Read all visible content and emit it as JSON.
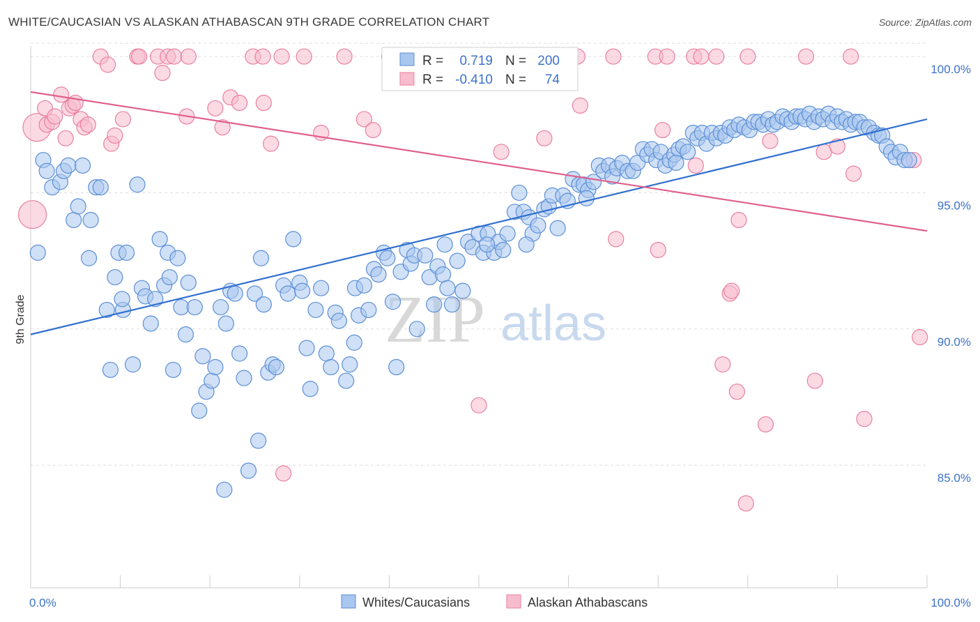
{
  "title": "WHITE/CAUCASIAN VS ALASKAN ATHABASCAN 9TH GRADE CORRELATION CHART",
  "source": "Source: ZipAtlas.com",
  "watermark": {
    "zip": "ZIP",
    "atlas": "atlas"
  },
  "colors": {
    "blue_fill": "#a9c6ee",
    "blue_stroke": "#5b8fd6",
    "blue_line": "#2f6fd0",
    "pink_fill": "#f7bccd",
    "pink_stroke": "#ea7fa0",
    "pink_line": "#e0608c",
    "grid": "#dddddd",
    "axis_text": "#3d72c9"
  },
  "legend": {
    "rows": [
      {
        "r_label": "R =",
        "r_value": "0.719",
        "n_label": "N =",
        "n_value": "200"
      },
      {
        "r_label": "R =",
        "r_value": "-0.410",
        "n_label": "N =",
        "n_value": "74"
      }
    ]
  },
  "bottom_legend": {
    "blue": "Whites/Caucasians",
    "pink": "Alaskan Athabascans"
  },
  "chart_data": {
    "type": "scatter",
    "title": "WHITE/CAUCASIAN VS ALASKAN ATHABASCAN 9TH GRADE CORRELATION CHART",
    "xlabel": "",
    "ylabel": "9th Grade",
    "xlim": [
      0,
      100
    ],
    "ylim": [
      80.5,
      101
    ],
    "x_tick_labels": [
      "0.0%",
      "100.0%"
    ],
    "y_ticks": [
      85,
      90,
      95,
      100
    ],
    "y_tick_labels": [
      "85.0%",
      "90.0%",
      "95.0%",
      "100.0%"
    ],
    "grid": true,
    "legend_placement": "top-center",
    "series": [
      {
        "name": "Whites/Caucasians",
        "color": "#a9c6ee",
        "trend": {
          "x": [
            0,
            100
          ],
          "y": [
            89.8,
            97.7
          ]
        },
        "points": [
          [
            0.8,
            92.8
          ],
          [
            1.4,
            96.2
          ],
          [
            1.8,
            95.8
          ],
          [
            2.4,
            95.2
          ],
          [
            3.3,
            95.4
          ],
          [
            3.7,
            95.8
          ],
          [
            4.2,
            96.0
          ],
          [
            4.8,
            94.0
          ],
          [
            5.3,
            94.5
          ],
          [
            5.8,
            96.0
          ],
          [
            6.5,
            92.6
          ],
          [
            6.7,
            94.0
          ],
          [
            7.3,
            95.2
          ],
          [
            7.8,
            95.2
          ],
          [
            8.5,
            90.7
          ],
          [
            8.9,
            88.5
          ],
          [
            9.4,
            91.9
          ],
          [
            9.8,
            92.8
          ],
          [
            10.3,
            90.7
          ],
          [
            10.7,
            92.8
          ],
          [
            11.4,
            88.7
          ],
          [
            11.9,
            95.3
          ],
          [
            12.4,
            91.5
          ],
          [
            12.8,
            91.2
          ],
          [
            13.4,
            90.2
          ],
          [
            13.9,
            91.1
          ],
          [
            14.4,
            93.3
          ],
          [
            14.9,
            91.6
          ],
          [
            15.3,
            92.8
          ],
          [
            15.9,
            88.5
          ],
          [
            16.4,
            92.6
          ],
          [
            16.8,
            90.8
          ],
          [
            17.3,
            89.8
          ],
          [
            17.6,
            91.7
          ],
          [
            18.3,
            90.8
          ],
          [
            18.8,
            87.0
          ],
          [
            19.2,
            89.0
          ],
          [
            19.6,
            87.7
          ],
          [
            20.2,
            88.1
          ],
          [
            20.6,
            88.6
          ],
          [
            21.2,
            90.8
          ],
          [
            21.6,
            84.1
          ],
          [
            22.3,
            91.4
          ],
          [
            22.8,
            91.3
          ],
          [
            23.3,
            89.1
          ],
          [
            23.8,
            88.2
          ],
          [
            24.3,
            84.8
          ],
          [
            25.0,
            91.3
          ],
          [
            25.4,
            85.9
          ],
          [
            26.0,
            90.9
          ],
          [
            26.5,
            88.4
          ],
          [
            27.0,
            88.7
          ],
          [
            27.4,
            88.6
          ],
          [
            28.2,
            91.6
          ],
          [
            28.7,
            91.3
          ],
          [
            29.3,
            93.3
          ],
          [
            30.0,
            91.7
          ],
          [
            30.8,
            89.3
          ],
          [
            31.2,
            87.8
          ],
          [
            31.8,
            90.7
          ],
          [
            32.4,
            91.5
          ],
          [
            33.0,
            89.1
          ],
          [
            33.5,
            88.6
          ],
          [
            34.0,
            90.6
          ],
          [
            34.4,
            90.3
          ],
          [
            35.2,
            88.1
          ],
          [
            35.6,
            88.7
          ],
          [
            36.2,
            91.5
          ],
          [
            36.6,
            90.5
          ],
          [
            37.2,
            91.6
          ],
          [
            37.7,
            90.7
          ],
          [
            38.3,
            92.2
          ],
          [
            38.8,
            92.0
          ],
          [
            39.4,
            92.8
          ],
          [
            39.8,
            92.6
          ],
          [
            40.4,
            91.0
          ],
          [
            40.8,
            88.6
          ],
          [
            41.3,
            92.1
          ],
          [
            42.0,
            92.9
          ],
          [
            42.4,
            92.4
          ],
          [
            42.8,
            92.7
          ],
          [
            43.1,
            90.0
          ],
          [
            44.0,
            92.7
          ],
          [
            44.5,
            91.9
          ],
          [
            45.0,
            90.9
          ],
          [
            45.4,
            92.3
          ],
          [
            46.0,
            92.0
          ],
          [
            46.5,
            91.5
          ],
          [
            47.0,
            90.9
          ],
          [
            47.6,
            92.5
          ],
          [
            48.2,
            91.4
          ],
          [
            48.8,
            93.2
          ],
          [
            49.3,
            93.0
          ],
          [
            50.0,
            93.5
          ],
          [
            50.5,
            92.8
          ],
          [
            51.0,
            93.5
          ],
          [
            51.7,
            92.8
          ],
          [
            52.2,
            93.2
          ],
          [
            52.7,
            92.9
          ],
          [
            53.2,
            93.5
          ],
          [
            54.0,
            94.3
          ],
          [
            54.5,
            95.0
          ],
          [
            55.0,
            94.3
          ],
          [
            55.6,
            94.1
          ],
          [
            56.0,
            93.5
          ],
          [
            56.6,
            93.8
          ],
          [
            57.3,
            94.4
          ],
          [
            57.8,
            94.5
          ],
          [
            58.2,
            94.9
          ],
          [
            58.8,
            93.7
          ],
          [
            59.4,
            94.9
          ],
          [
            59.9,
            94.7
          ],
          [
            60.5,
            95.5
          ],
          [
            61.2,
            95.3
          ],
          [
            61.7,
            95.3
          ],
          [
            62.2,
            95.1
          ],
          [
            62.8,
            95.4
          ],
          [
            63.4,
            96.0
          ],
          [
            63.9,
            95.8
          ],
          [
            64.5,
            96.0
          ],
          [
            64.9,
            95.6
          ],
          [
            65.4,
            95.9
          ],
          [
            66.0,
            96.1
          ],
          [
            66.6,
            95.8
          ],
          [
            67.2,
            95.8
          ],
          [
            67.7,
            96.1
          ],
          [
            68.3,
            96.6
          ],
          [
            68.8,
            96.4
          ],
          [
            69.3,
            96.6
          ],
          [
            69.8,
            96.2
          ],
          [
            70.3,
            96.5
          ],
          [
            70.8,
            96.0
          ],
          [
            71.3,
            96.2
          ],
          [
            71.8,
            96.4
          ],
          [
            72.3,
            96.6
          ],
          [
            72.8,
            96.7
          ],
          [
            73.3,
            96.5
          ],
          [
            73.9,
            97.2
          ],
          [
            74.4,
            97.0
          ],
          [
            74.9,
            97.2
          ],
          [
            75.4,
            96.8
          ],
          [
            76.0,
            97.2
          ],
          [
            76.5,
            97.0
          ],
          [
            77.0,
            97.2
          ],
          [
            77.5,
            97.1
          ],
          [
            78.0,
            97.4
          ],
          [
            78.5,
            97.3
          ],
          [
            79.0,
            97.5
          ],
          [
            79.6,
            97.4
          ],
          [
            80.2,
            97.3
          ],
          [
            80.7,
            97.6
          ],
          [
            81.2,
            97.6
          ],
          [
            81.7,
            97.5
          ],
          [
            82.3,
            97.7
          ],
          [
            82.8,
            97.5
          ],
          [
            83.3,
            97.6
          ],
          [
            83.9,
            97.8
          ],
          [
            84.4,
            97.7
          ],
          [
            84.9,
            97.6
          ],
          [
            85.4,
            97.8
          ],
          [
            85.9,
            97.8
          ],
          [
            86.4,
            97.7
          ],
          [
            86.9,
            97.9
          ],
          [
            87.4,
            97.6
          ],
          [
            87.9,
            97.8
          ],
          [
            88.4,
            97.7
          ],
          [
            89.0,
            97.9
          ],
          [
            89.5,
            97.6
          ],
          [
            90.0,
            97.8
          ],
          [
            90.5,
            97.6
          ],
          [
            91.0,
            97.7
          ],
          [
            91.5,
            97.5
          ],
          [
            92.0,
            97.6
          ],
          [
            92.5,
            97.6
          ],
          [
            93.0,
            97.4
          ],
          [
            93.5,
            97.4
          ],
          [
            94.1,
            97.2
          ],
          [
            94.6,
            97.1
          ],
          [
            95.0,
            97.1
          ],
          [
            95.5,
            96.7
          ],
          [
            96.0,
            96.5
          ],
          [
            96.5,
            96.3
          ],
          [
            97.0,
            96.5
          ],
          [
            97.5,
            96.2
          ],
          [
            98.0,
            96.2
          ],
          [
            72.0,
            96.1
          ],
          [
            62.0,
            94.8
          ],
          [
            55.3,
            93.1
          ],
          [
            46.2,
            93.1
          ],
          [
            36.1,
            89.5
          ],
          [
            30.3,
            91.4
          ],
          [
            25.7,
            92.6
          ],
          [
            21.8,
            90.2
          ],
          [
            15.5,
            91.9
          ],
          [
            10.2,
            91.1
          ],
          [
            50.9,
            93.1
          ]
        ]
      },
      {
        "name": "Alaskan Athabascans",
        "color": "#f7bccd",
        "trend": {
          "x": [
            0,
            100
          ],
          "y": [
            98.7,
            93.6
          ]
        },
        "points": [
          [
            0.2,
            94.2
          ],
          [
            0.7,
            97.4
          ],
          [
            1.6,
            98.1
          ],
          [
            1.8,
            97.5
          ],
          [
            2.4,
            97.6
          ],
          [
            2.7,
            97.8
          ],
          [
            3.4,
            98.6
          ],
          [
            3.9,
            97.0
          ],
          [
            4.3,
            98.1
          ],
          [
            4.7,
            98.2
          ],
          [
            5.0,
            98.3
          ],
          [
            5.6,
            97.7
          ],
          [
            6.0,
            97.4
          ],
          [
            6.4,
            97.5
          ],
          [
            7.8,
            100.0
          ],
          [
            8.6,
            99.7
          ],
          [
            9.0,
            96.8
          ],
          [
            9.4,
            97.1
          ],
          [
            10.3,
            97.7
          ],
          [
            11.9,
            100.0
          ],
          [
            12.1,
            100.0
          ],
          [
            14.2,
            100.0
          ],
          [
            14.7,
            99.4
          ],
          [
            15.3,
            100.0
          ],
          [
            16.0,
            100.0
          ],
          [
            17.4,
            97.8
          ],
          [
            17.6,
            100.0
          ],
          [
            20.6,
            98.1
          ],
          [
            21.4,
            97.4
          ],
          [
            22.3,
            98.5
          ],
          [
            23.3,
            98.3
          ],
          [
            24.8,
            100.0
          ],
          [
            25.9,
            100.0
          ],
          [
            26.0,
            98.3
          ],
          [
            26.8,
            96.8
          ],
          [
            28.0,
            100.0
          ],
          [
            28.2,
            84.7
          ],
          [
            30.5,
            100.0
          ],
          [
            32.4,
            97.2
          ],
          [
            35.0,
            100.0
          ],
          [
            37.2,
            97.7
          ],
          [
            38.2,
            97.3
          ],
          [
            40.0,
            100.0
          ],
          [
            41.5,
            100.0
          ],
          [
            45.5,
            100.0
          ],
          [
            50.0,
            87.2
          ],
          [
            52.5,
            96.5
          ],
          [
            55.2,
            100.0
          ],
          [
            57.3,
            97.0
          ],
          [
            61.0,
            100.0
          ],
          [
            61.3,
            98.2
          ],
          [
            65.0,
            100.0
          ],
          [
            65.3,
            93.3
          ],
          [
            69.7,
            100.0
          ],
          [
            70.0,
            92.9
          ],
          [
            70.5,
            97.3
          ],
          [
            71.0,
            100.0
          ],
          [
            74.0,
            100.0
          ],
          [
            74.2,
            96.0
          ],
          [
            74.8,
            100.0
          ],
          [
            76.5,
            100.0
          ],
          [
            77.2,
            88.7
          ],
          [
            78.0,
            91.3
          ],
          [
            78.2,
            91.4
          ],
          [
            78.8,
            87.7
          ],
          [
            79.0,
            94.0
          ],
          [
            79.8,
            83.6
          ],
          [
            80.0,
            100.0
          ],
          [
            82.0,
            86.5
          ],
          [
            82.5,
            96.9
          ],
          [
            86.5,
            100.0
          ],
          [
            87.5,
            88.1
          ],
          [
            88.5,
            96.5
          ],
          [
            90.0,
            96.7
          ],
          [
            91.5,
            100.0
          ],
          [
            91.8,
            95.7
          ],
          [
            93.0,
            86.7
          ],
          [
            98.5,
            96.2
          ],
          [
            99.2,
            89.7
          ]
        ]
      }
    ]
  }
}
